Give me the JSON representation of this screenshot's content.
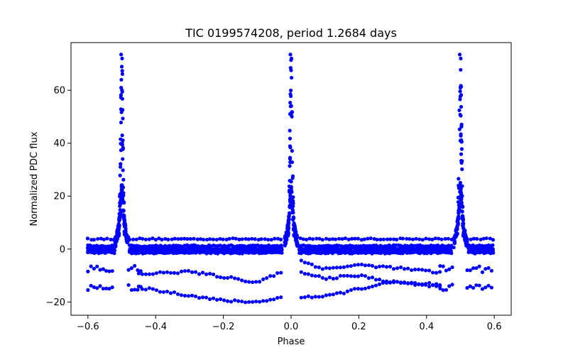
{
  "chart_data": {
    "type": "scatter",
    "title": "TIC 0199574208, period 1.2684 days",
    "xlabel": "Phase",
    "ylabel": "Normalized PDC flux",
    "xlim": [
      -0.65,
      0.65
    ],
    "ylim": [
      -25,
      78
    ],
    "xticks": [
      -0.6,
      -0.4,
      -0.2,
      0.0,
      0.2,
      0.4,
      0.6
    ],
    "xtick_labels": [
      "−0.6",
      "−0.4",
      "−0.2",
      "0.0",
      "0.2",
      "0.4",
      "0.6"
    ],
    "yticks": [
      -20,
      0,
      20,
      40,
      60
    ],
    "ytick_labels": [
      "−20",
      "0",
      "20",
      "40",
      "60"
    ],
    "grid": false,
    "marker_color": "#0000ff",
    "series": [
      {
        "name": "",
        "peak_centers": [
          -0.5,
          0.0,
          0.5
        ],
        "peak_max": 73.5,
        "peak_shoulder": 25,
        "flat_bands": [
          3.8,
          1.2,
          0.2,
          -0.6,
          -1.4
        ],
        "lower_bands_phase_minus": [
          -7.5,
          -14.5
        ],
        "lower_band_mid_curves": [
          {
            "x": [
              -0.45,
              -0.3,
              -0.2,
              -0.1,
              -0.02
            ],
            "y": [
              -9.5,
              -8.5,
              -10.5,
              -12.5,
              -8.5
            ]
          },
          {
            "x": [
              -0.45,
              -0.3,
              -0.2,
              -0.1,
              -0.02
            ],
            "y": [
              -14.5,
              -17.5,
              -19.5,
              -20.0,
              -18.0
            ]
          },
          {
            "x": [
              0.03,
              0.1,
              0.2,
              0.3,
              0.45
            ],
            "y": [
              -4.5,
              -7.5,
              -6.0,
              -7.0,
              -9.0
            ]
          },
          {
            "x": [
              0.03,
              0.1,
              0.2,
              0.3,
              0.45
            ],
            "y": [
              -9.0,
              -11.0,
              -10.0,
              -12.5,
              -13.5
            ]
          },
          {
            "x": [
              0.03,
              0.1,
              0.2,
              0.3,
              0.45
            ],
            "y": [
              -18.0,
              -18.0,
              -15.0,
              -12.5,
              -14.5
            ]
          }
        ]
      }
    ]
  }
}
